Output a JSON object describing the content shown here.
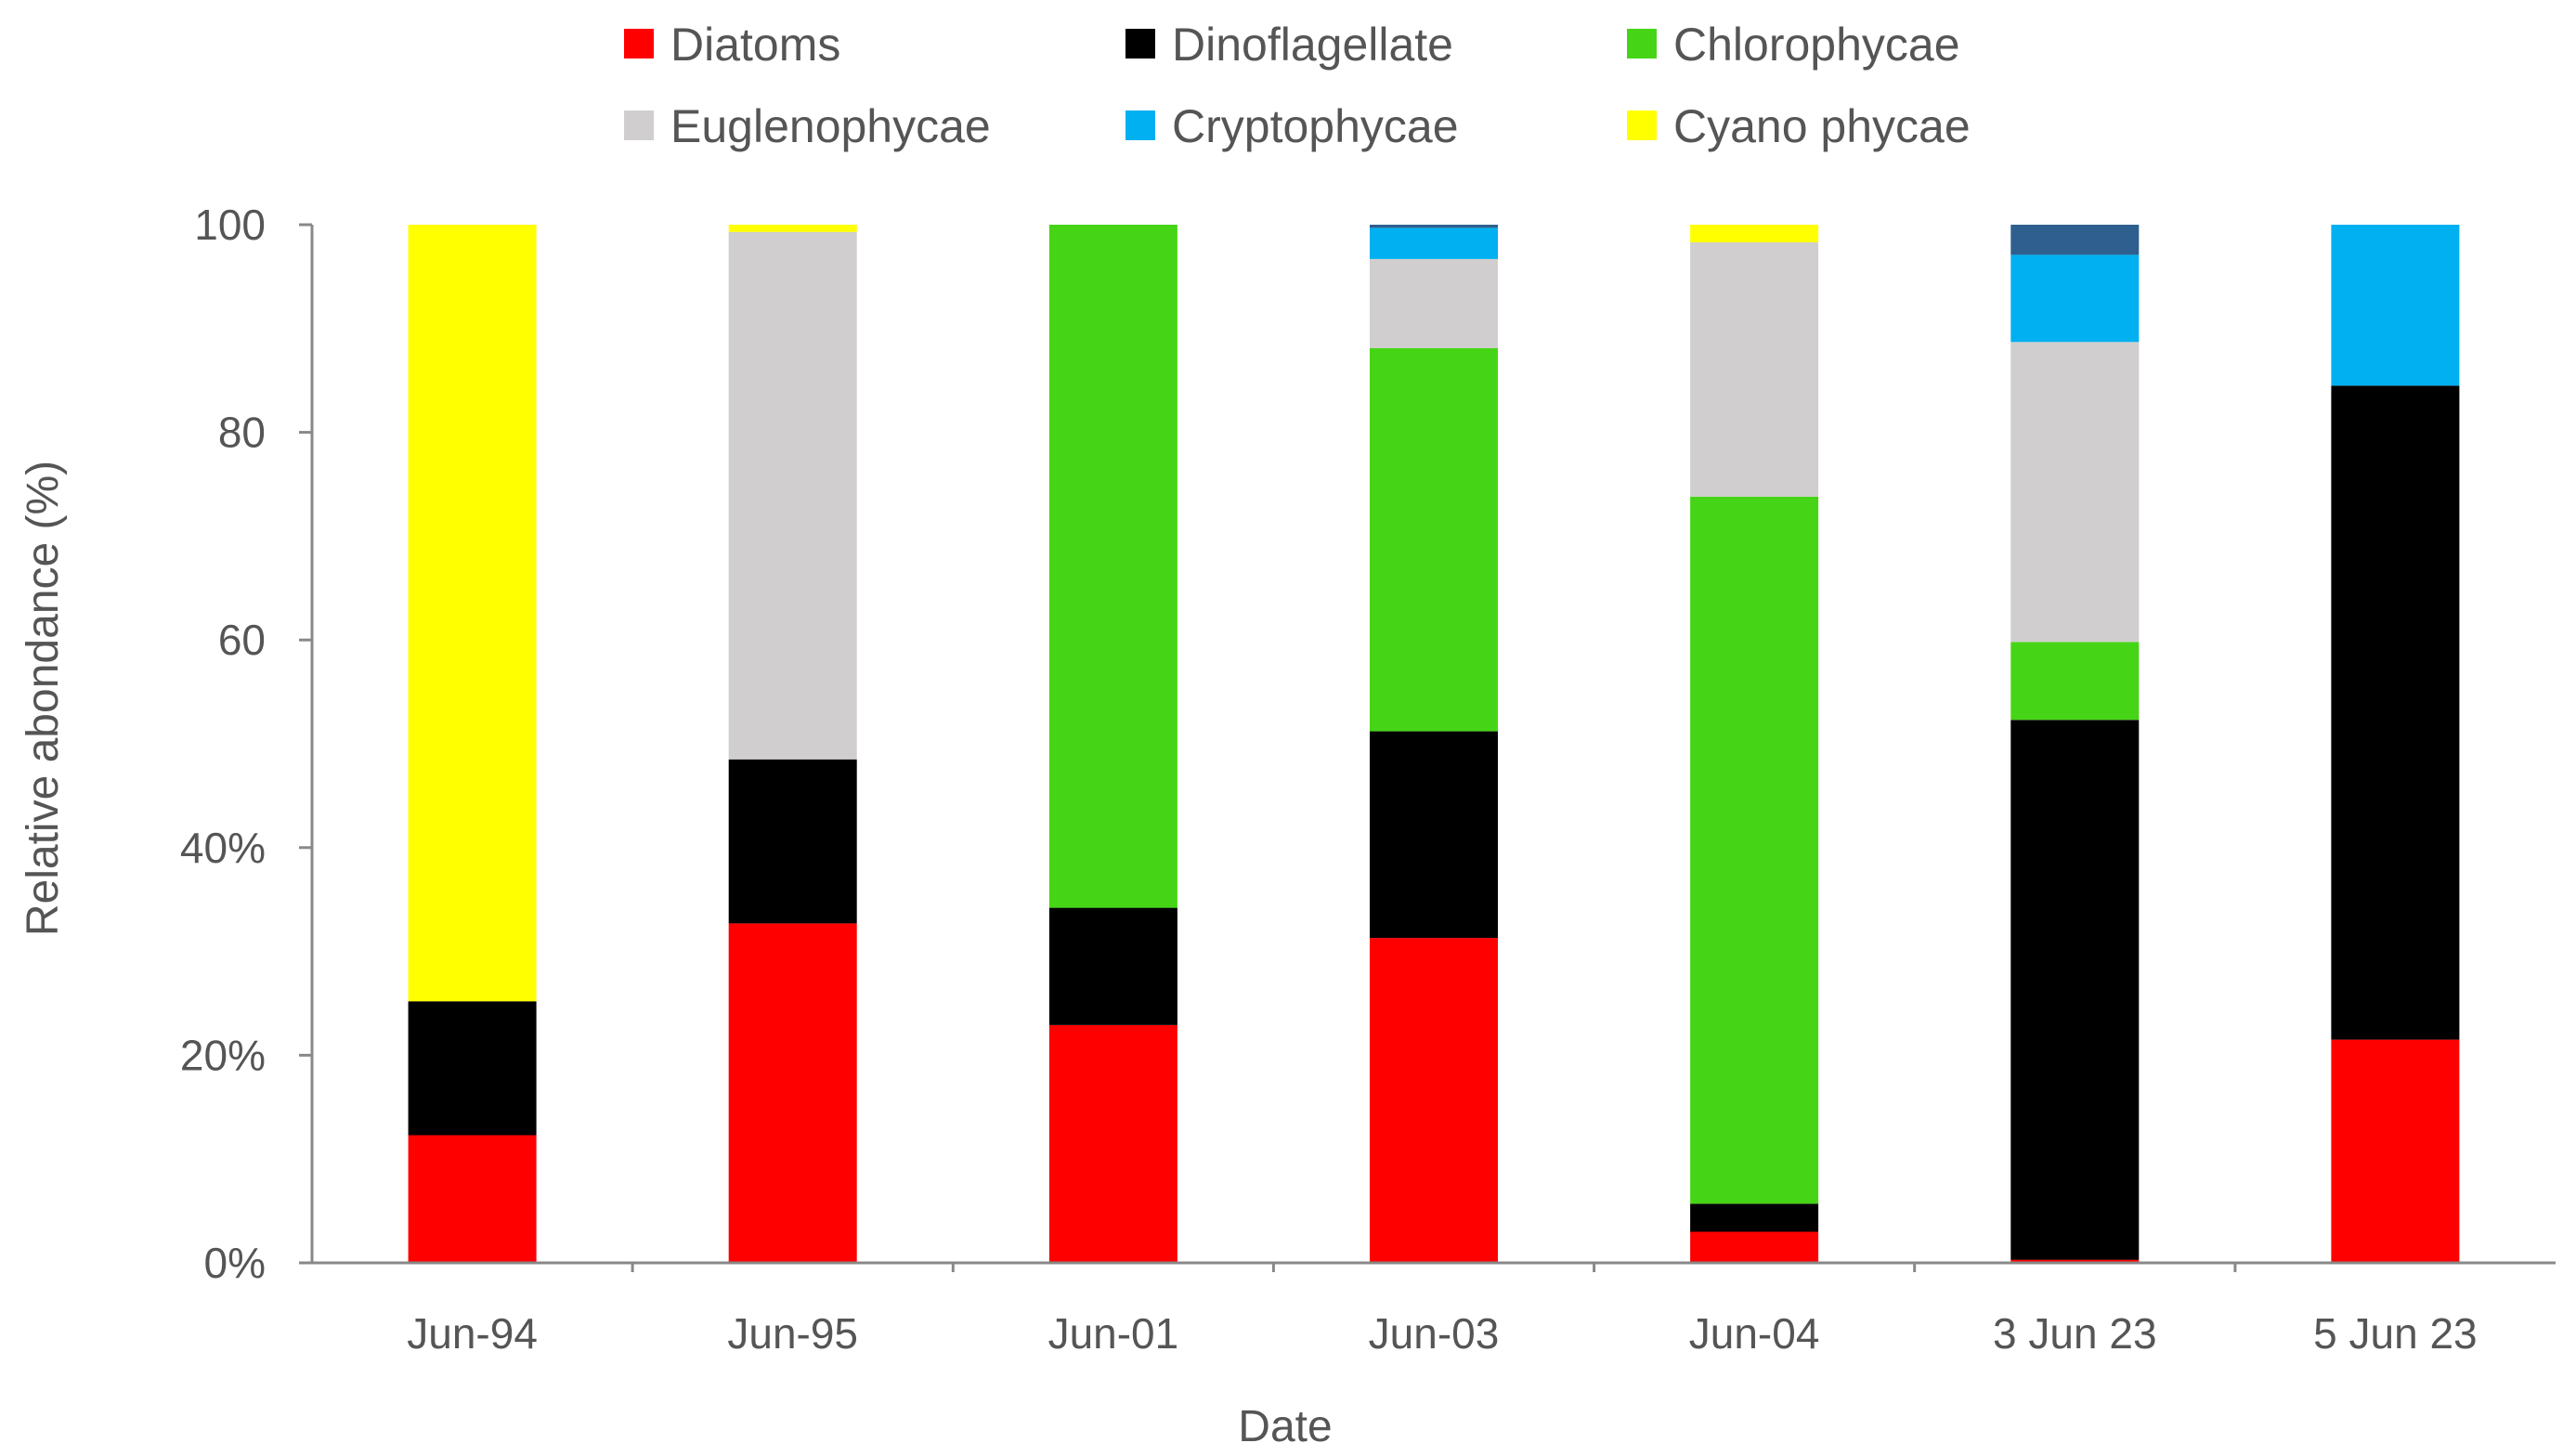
{
  "chart_data": {
    "type": "bar",
    "stacked": true,
    "title": "",
    "xlabel": "Date",
    "ylabel": "Relative abondance (%)",
    "ylim": [
      0,
      100
    ],
    "y_ticks": [
      0,
      20,
      40,
      60,
      80,
      100
    ],
    "y_tick_labels": [
      "0%",
      "20%",
      "40%",
      "60",
      "80",
      "100"
    ],
    "categories": [
      "Jun-94",
      "Jun-95",
      "Jun-01",
      "Jun-03",
      "Jun-04",
      "3 Jun 23",
      "5 Jun 23"
    ],
    "legend_position": "top",
    "series": [
      {
        "name": "Diatoms",
        "color": "#ff0000",
        "values": [
          12.3,
          32.7,
          22.9,
          31.3,
          3.0,
          0.3,
          21.5
        ]
      },
      {
        "name": "Dinoflagellate",
        "color": "#000000",
        "values": [
          12.9,
          15.8,
          11.3,
          19.9,
          2.7,
          52.0,
          63.0
        ]
      },
      {
        "name": "Chlorophycae",
        "color": "#46d516",
        "values": [
          0,
          0,
          65.8,
          36.9,
          68.1,
          7.5,
          0
        ]
      },
      {
        "name": "Euglenophycae",
        "color": "#d0cece",
        "values": [
          0,
          50.8,
          0,
          8.6,
          24.5,
          28.9,
          0
        ]
      },
      {
        "name": "Cryptophycae",
        "color": "#00b0f0",
        "values": [
          0,
          0,
          0,
          3.0,
          0,
          8.4,
          15.5
        ]
      },
      {
        "name": "Cyano phycae",
        "color": "#ffff00",
        "values": [
          74.8,
          0.7,
          0,
          0,
          1.7,
          0,
          0
        ]
      },
      {
        "name": "",
        "color": "#2e5f8f",
        "values": [
          0,
          0,
          0,
          0.3,
          0,
          2.9,
          0
        ]
      }
    ]
  }
}
